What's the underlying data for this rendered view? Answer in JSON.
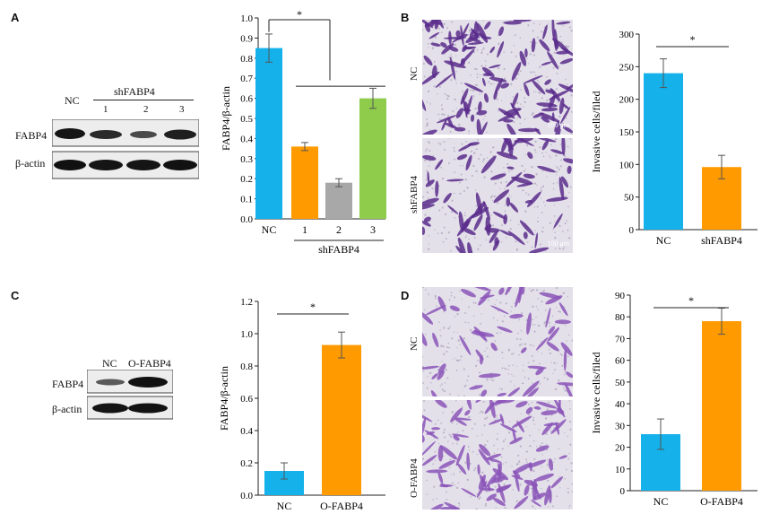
{
  "panels": {
    "A": {
      "letter": "A",
      "blot": {
        "nc_label": "NC",
        "group_label": "shFABP4",
        "lane_numbers": [
          "1",
          "2",
          "3"
        ],
        "row_labels": [
          "FABP4",
          "β-actin"
        ]
      }
    },
    "B": {
      "letter": "B",
      "image_labels": [
        "NC",
        "shFABP4"
      ],
      "scale_text": "100 μm"
    },
    "C": {
      "letter": "C",
      "blot": {
        "lane_labels": [
          "NC",
          "O-FABP4"
        ],
        "row_labels": [
          "FABP4",
          "β-actin"
        ]
      }
    },
    "D": {
      "letter": "D",
      "image_labels": [
        "NC",
        "O-FABP4"
      ]
    }
  },
  "colors": {
    "blue": "#14b1ea",
    "orange": "#ff9a00",
    "gray": "#a8a8a8",
    "green": "#8fcc4c"
  },
  "chart_data": [
    {
      "id": "chartA",
      "type": "bar",
      "categories": [
        "NC",
        "1",
        "2",
        "3"
      ],
      "group_label": "shFABP4",
      "values": [
        0.85,
        0.36,
        0.18,
        0.6
      ],
      "errors": [
        0.07,
        0.02,
        0.02,
        0.05
      ],
      "colors": [
        "#14b1ea",
        "#ff9a00",
        "#a8a8a8",
        "#8fcc4c"
      ],
      "ylabel": "FABP4/β-actin",
      "ylim": [
        0,
        1.0
      ],
      "yticks": [
        "0.0",
        "0.1",
        "0.2",
        "0.3",
        "0.4",
        "0.5",
        "0.6",
        "0.7",
        "0.8",
        "0.9",
        "1.0"
      ],
      "significance": "*"
    },
    {
      "id": "chartB",
      "type": "bar",
      "categories": [
        "NC",
        "shFABP4"
      ],
      "values": [
        240,
        96
      ],
      "errors": [
        22,
        18
      ],
      "colors": [
        "#14b1ea",
        "#ff9a00"
      ],
      "ylabel": "Invasive cells/filed",
      "ylim": [
        0,
        300
      ],
      "yticks": [
        "0",
        "50",
        "100",
        "150",
        "200",
        "250",
        "300"
      ],
      "significance": "*"
    },
    {
      "id": "chartC",
      "type": "bar",
      "categories": [
        "NC",
        "O-FABP4"
      ],
      "values": [
        0.15,
        0.93
      ],
      "errors": [
        0.05,
        0.08
      ],
      "colors": [
        "#14b1ea",
        "#ff9a00"
      ],
      "ylabel": "FABP4/β-actin",
      "ylim": [
        0,
        1.2
      ],
      "yticks": [
        "0.0",
        "0.2",
        "0.4",
        "0.6",
        "0.8",
        "1.0",
        "1.2"
      ],
      "significance": "*"
    },
    {
      "id": "chartD",
      "type": "bar",
      "categories": [
        "NC",
        "O-FABP4"
      ],
      "values": [
        26,
        78
      ],
      "errors": [
        7,
        6
      ],
      "colors": [
        "#14b1ea",
        "#ff9a00"
      ],
      "ylabel": "Invasive cells/filed",
      "ylim": [
        0,
        90
      ],
      "yticks": [
        "0",
        "10",
        "20",
        "30",
        "40",
        "50",
        "60",
        "70",
        "80",
        "90"
      ],
      "significance": "*"
    }
  ]
}
